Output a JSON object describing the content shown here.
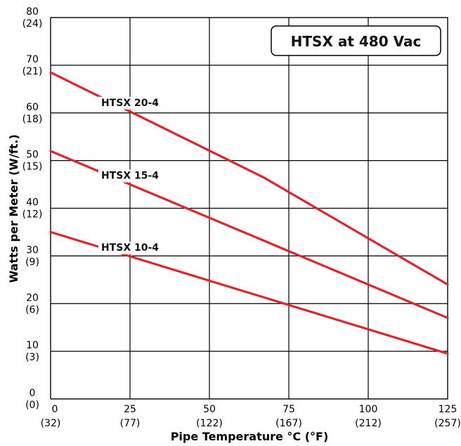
{
  "chart_data": {
    "type": "line",
    "title": "HTSX at 480 Vac",
    "xlabel": "Pipe Temperature °C (°F)",
    "ylabel": "Watts per Meter (W/ft.)",
    "xlim": [
      0,
      125
    ],
    "ylim": [
      0,
      80
    ],
    "grid": true,
    "line_color": "#e0242b",
    "x_ticks": [
      {
        "value": 0,
        "label": "0",
        "sub": "(32)"
      },
      {
        "value": 25,
        "label": "25",
        "sub": "(77)"
      },
      {
        "value": 50,
        "label": "50",
        "sub": "(122)"
      },
      {
        "value": 75,
        "label": "75",
        "sub": "(167)"
      },
      {
        "value": 100,
        "label": "100",
        "sub": "(212)"
      },
      {
        "value": 125,
        "label": "125",
        "sub": "(257)"
      }
    ],
    "y_ticks": [
      {
        "value": 0,
        "label": "0",
        "sub": "(0)"
      },
      {
        "value": 10,
        "label": "10",
        "sub": "(3)"
      },
      {
        "value": 20,
        "label": "20",
        "sub": "(6)"
      },
      {
        "value": 30,
        "label": "30",
        "sub": "(9)"
      },
      {
        "value": 40,
        "label": "40",
        "sub": "(12)"
      },
      {
        "value": 50,
        "label": "50",
        "sub": "(15)"
      },
      {
        "value": 60,
        "label": "60",
        "sub": "(18)"
      },
      {
        "value": 70,
        "label": "70",
        "sub": "(21)"
      },
      {
        "value": 80,
        "label": "80",
        "sub": "(24)"
      }
    ],
    "series": [
      {
        "name": "HTSX 20-4",
        "x": [
          0,
          67,
          125
        ],
        "y": [
          68.5,
          46.5,
          24
        ],
        "label_x": 25
      },
      {
        "name": "HTSX 15-4",
        "x": [
          0,
          125
        ],
        "y": [
          52,
          17
        ],
        "label_x": 25
      },
      {
        "name": "HTSX 10-4",
        "x": [
          0,
          125
        ],
        "y": [
          35,
          9.5
        ],
        "label_x": 25
      }
    ]
  }
}
